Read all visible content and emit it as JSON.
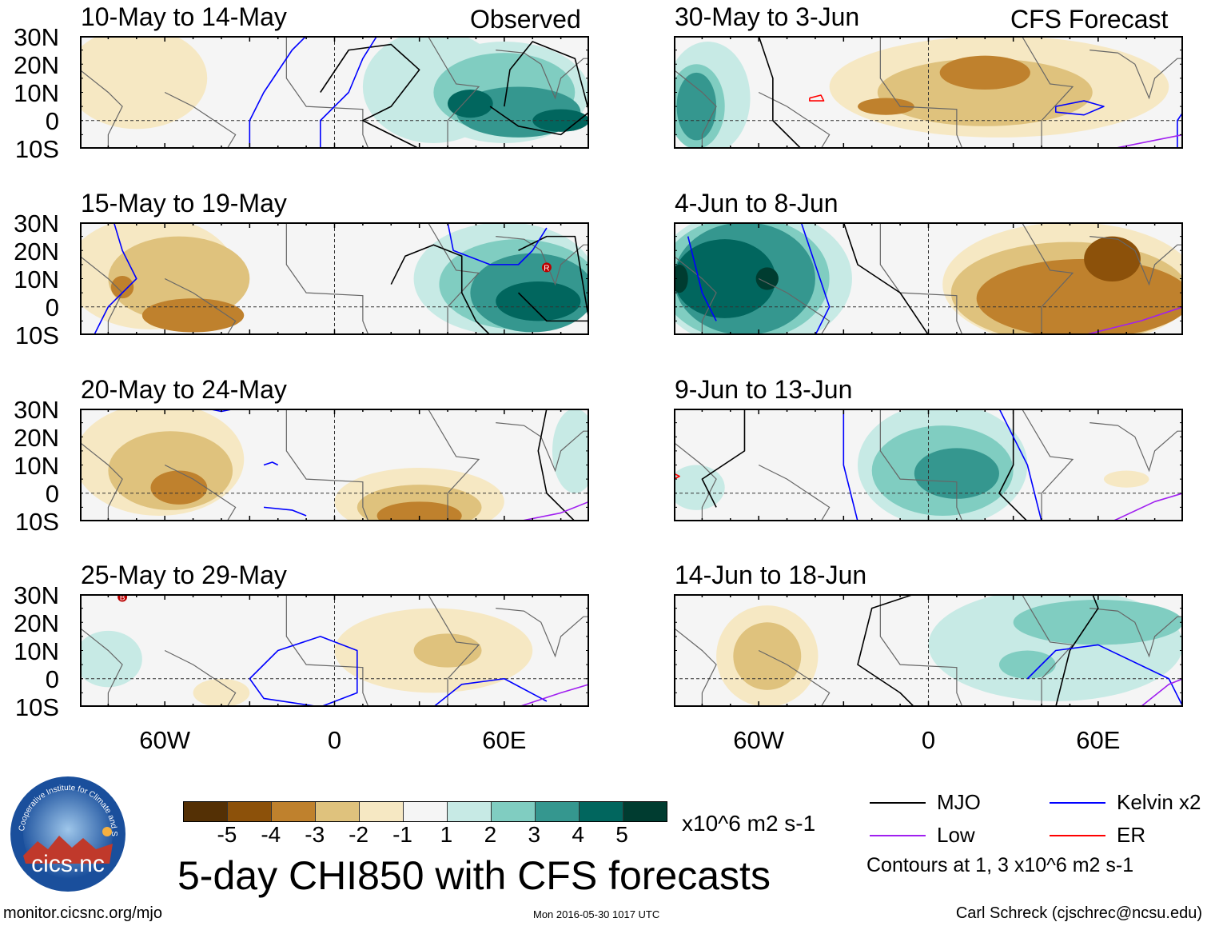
{
  "title": "5-day CHI850 with CFS forecasts",
  "units": "x10^6 m2 s-1",
  "observed_label": "Observed",
  "forecast_label": "CFS Forecast",
  "lat_labels": [
    "30N",
    "20N",
    "10N",
    "0",
    "10S"
  ],
  "lon_labels": [
    {
      "lon": -60,
      "text": "60W"
    },
    {
      "lon": 0,
      "text": "0"
    },
    {
      "lon": 60,
      "text": "60E"
    }
  ],
  "colorbar": {
    "colors": [
      "#543005",
      "#8c510a",
      "#bf812d",
      "#dfc27d",
      "#f6e8c3",
      "#f5f5f5",
      "#c7eae5",
      "#80cdc1",
      "#35978f",
      "#01665e",
      "#003c30"
    ],
    "ticks": [
      "-5",
      "-4",
      "-3",
      "-2",
      "-1",
      "1",
      "2",
      "3",
      "4",
      "5"
    ]
  },
  "legend": {
    "items": [
      {
        "label": "MJO",
        "color": "#000000"
      },
      {
        "label": "Kelvin x2",
        "color": "#0000ff"
      },
      {
        "label": "Low",
        "color": "#a020f0"
      },
      {
        "label": "ER",
        "color": "#ff0000"
      }
    ],
    "contour_note": "Contours at 1, 3 x10^6 m2 s-1"
  },
  "footer": {
    "left": "monitor.cicsnc.org/mjo",
    "center": "Mon 2016-05-30 1017 UTC",
    "right": "Carl Schreck (cjschrec@ncsu.edu)"
  },
  "logo": {
    "text": "cics.nc",
    "arc_text": "Cooperative Institute for Climate and Satellites"
  },
  "panels": [
    {
      "title": "10-May to 14-May",
      "column": "observed",
      "blobs": [
        [
          -70,
          15,
          25,
          18,
          4
        ],
        [
          35,
          12,
          25,
          20,
          6
        ],
        [
          60,
          10,
          30,
          18,
          6
        ],
        [
          60,
          10,
          25,
          14,
          7
        ],
        [
          65,
          3,
          22,
          9,
          8
        ],
        [
          48,
          6,
          8,
          5,
          9
        ],
        [
          80,
          0,
          10,
          4,
          9
        ]
      ],
      "contours": [
        {
          "c": "#000",
          "p": [
            [
              -5,
              10
            ],
            [
              5,
              25
            ],
            [
              20,
              27
            ],
            [
              30,
              18
            ],
            [
              20,
              5
            ],
            [
              10,
              0
            ],
            [
              20,
              -5
            ],
            [
              30,
              -10
            ]
          ]
        },
        {
          "c": "#000",
          "p": [
            [
              60,
              5
            ],
            [
              62,
              18
            ],
            [
              70,
              28
            ],
            [
              85,
              22
            ],
            [
              90,
              3
            ],
            [
              80,
              -5
            ],
            [
              65,
              -2
            ],
            [
              55,
              5
            ]
          ]
        },
        {
          "c": "#00f",
          "p": [
            [
              -30,
              -10
            ],
            [
              -30,
              0
            ],
            [
              -25,
              10
            ],
            [
              -15,
              25
            ],
            [
              -10,
              30
            ]
          ]
        },
        {
          "c": "#00f",
          "p": [
            [
              -5,
              -10
            ],
            [
              -5,
              0
            ],
            [
              5,
              10
            ],
            [
              10,
              22
            ],
            [
              15,
              30
            ]
          ]
        }
      ]
    },
    {
      "title": "15-May to 19-May",
      "column": "observed",
      "blobs": [
        [
          -65,
          12,
          30,
          20,
          4
        ],
        [
          -55,
          10,
          25,
          15,
          3
        ],
        [
          -50,
          -3,
          18,
          6,
          2
        ],
        [
          -75,
          7,
          4,
          4,
          2
        ],
        [
          60,
          10,
          32,
          20,
          6
        ],
        [
          65,
          8,
          28,
          16,
          7
        ],
        [
          70,
          5,
          22,
          14,
          8
        ],
        [
          72,
          2,
          15,
          7,
          9
        ]
      ],
      "contours": [
        {
          "c": "#000",
          "p": [
            [
              20,
              8
            ],
            [
              25,
              18
            ],
            [
              35,
              22
            ],
            [
              45,
              18
            ],
            [
              45,
              5
            ],
            [
              50,
              -5
            ],
            [
              55,
              -10
            ]
          ]
        },
        {
          "c": "#000",
          "p": [
            [
              65,
              20
            ],
            [
              75,
              25
            ],
            [
              85,
              25
            ],
            [
              90,
              -5
            ],
            [
              75,
              -5
            ],
            [
              65,
              5
            ]
          ]
        },
        {
          "c": "#00f",
          "p": [
            [
              -78,
              30
            ],
            [
              -75,
              20
            ],
            [
              -70,
              10
            ],
            [
              -80,
              0
            ],
            [
              -85,
              -10
            ]
          ]
        },
        {
          "c": "#00f",
          "p": [
            [
              40,
              30
            ],
            [
              42,
              20
            ],
            [
              55,
              15
            ],
            [
              65,
              15
            ],
            [
              70,
              20
            ],
            [
              75,
              28
            ]
          ]
        }
      ],
      "marker": {
        "lon": 75,
        "lat": 14,
        "label": "R"
      }
    },
    {
      "title": "20-May to 24-May",
      "column": "observed",
      "blobs": [
        [
          -62,
          12,
          30,
          20,
          4
        ],
        [
          -58,
          8,
          22,
          14,
          3
        ],
        [
          -55,
          2,
          10,
          6,
          2
        ],
        [
          30,
          -3,
          30,
          12,
          4
        ],
        [
          30,
          -5,
          22,
          8,
          3
        ],
        [
          30,
          -8,
          15,
          5,
          2
        ],
        [
          85,
          15,
          8,
          15,
          6
        ]
      ],
      "contours": [
        {
          "c": "#000",
          "p": [
            [
              75,
              30
            ],
            [
              72,
              15
            ],
            [
              75,
              0
            ],
            [
              85,
              -10
            ]
          ]
        },
        {
          "c": "#00f",
          "p": [
            [
              -45,
              30
            ],
            [
              -40,
              29
            ],
            [
              -35,
              30
            ]
          ]
        },
        {
          "c": "#00f",
          "p": [
            [
              -25,
              -5
            ],
            [
              -15,
              -6
            ],
            [
              -10,
              -8
            ]
          ]
        },
        {
          "c": "#00f",
          "p": [
            [
              -25,
              10
            ],
            [
              -22,
              11
            ],
            [
              -20,
              10
            ]
          ]
        },
        {
          "c": "#a020f0",
          "p": [
            [
              65,
              -10
            ],
            [
              80,
              -7
            ],
            [
              90,
              -3
            ]
          ]
        }
      ]
    },
    {
      "title": "25-May to 29-May",
      "column": "observed",
      "blobs": [
        [
          -80,
          7,
          12,
          10,
          6
        ],
        [
          35,
          10,
          35,
          15,
          4
        ],
        [
          40,
          10,
          12,
          6,
          3
        ],
        [
          -40,
          -5,
          10,
          5,
          4
        ]
      ],
      "contours": [
        {
          "c": "#00f",
          "p": [
            [
              -30,
              0
            ],
            [
              -20,
              10
            ],
            [
              -5,
              15
            ],
            [
              8,
              10
            ],
            [
              8,
              -5
            ],
            [
              -5,
              -10
            ],
            [
              -25,
              -7
            ],
            [
              -30,
              0
            ]
          ]
        },
        {
          "c": "#00f",
          "p": [
            [
              35,
              -10
            ],
            [
              45,
              -2
            ],
            [
              60,
              0
            ],
            [
              75,
              -8
            ]
          ]
        },
        {
          "c": "#a020f0",
          "p": [
            [
              65,
              -10
            ],
            [
              80,
              -5
            ],
            [
              90,
              -2
            ]
          ]
        }
      ],
      "marker": {
        "lon": -75,
        "lat": 29,
        "label": "B"
      }
    },
    {
      "title": "30-May to 3-Jun",
      "column": "forecast",
      "blobs": [
        [
          -78,
          8,
          15,
          20,
          6
        ],
        [
          -82,
          5,
          10,
          15,
          7
        ],
        [
          -82,
          5,
          7,
          12,
          8
        ],
        [
          25,
          12,
          60,
          18,
          4
        ],
        [
          20,
          10,
          38,
          12,
          3
        ],
        [
          20,
          17,
          16,
          6,
          2
        ],
        [
          -15,
          5,
          10,
          3,
          2
        ]
      ],
      "contours": [
        {
          "c": "#000",
          "p": [
            [
              -60,
              30
            ],
            [
              -55,
              15
            ],
            [
              -55,
              0
            ],
            [
              -45,
              -10
            ]
          ]
        },
        {
          "c": "#00f",
          "p": [
            [
              45,
              5
            ],
            [
              55,
              7
            ],
            [
              62,
              5
            ],
            [
              55,
              2
            ],
            [
              45,
              3
            ],
            [
              45,
              5
            ]
          ]
        },
        {
          "c": "#00f",
          "p": [
            [
              88,
              -10
            ],
            [
              88,
              0
            ],
            [
              90,
              3
            ]
          ]
        },
        {
          "c": "#f00",
          "p": [
            [
              -42,
              8
            ],
            [
              -38,
              9
            ],
            [
              -37,
              7
            ],
            [
              -42,
              7
            ],
            [
              -42,
              8
            ]
          ]
        },
        {
          "c": "#a020f0",
          "p": [
            [
              65,
              -10
            ],
            [
              80,
              -7
            ],
            [
              90,
              -5
            ]
          ]
        }
      ]
    },
    {
      "title": "4-Jun to 8-Jun",
      "column": "forecast",
      "blobs": [
        [
          -62,
          10,
          35,
          25,
          6
        ],
        [
          -65,
          10,
          30,
          22,
          7
        ],
        [
          -65,
          10,
          25,
          20,
          8
        ],
        [
          -72,
          10,
          18,
          14,
          9
        ],
        [
          -57,
          10,
          4,
          4,
          10
        ],
        [
          -88,
          10,
          3,
          5,
          10
        ],
        [
          50,
          8,
          45,
          22,
          4
        ],
        [
          50,
          5,
          42,
          18,
          3
        ],
        [
          55,
          3,
          38,
          14,
          2
        ],
        [
          65,
          17,
          10,
          8,
          1
        ]
      ],
      "contours": [
        {
          "c": "#000",
          "p": [
            [
              -30,
              30
            ],
            [
              -25,
              15
            ],
            [
              -10,
              5
            ],
            [
              0,
              -10
            ]
          ]
        },
        {
          "c": "#00f",
          "p": [
            [
              -45,
              30
            ],
            [
              -40,
              15
            ],
            [
              -35,
              0
            ],
            [
              -40,
              -10
            ]
          ]
        },
        {
          "c": "#00f",
          "p": [
            [
              -85,
              25
            ],
            [
              -80,
              5
            ],
            [
              -75,
              -5
            ]
          ]
        },
        {
          "c": "#a020f0",
          "p": [
            [
              55,
              -10
            ],
            [
              75,
              -5
            ],
            [
              90,
              0
            ]
          ]
        }
      ]
    },
    {
      "title": "9-Jun to 13-Jun",
      "column": "forecast",
      "blobs": [
        [
          5,
          10,
          30,
          22,
          6
        ],
        [
          5,
          8,
          25,
          16,
          7
        ],
        [
          10,
          7,
          15,
          9,
          8
        ],
        [
          -82,
          2,
          10,
          8,
          6
        ],
        [
          70,
          5,
          8,
          3,
          4
        ]
      ],
      "contours": [
        {
          "c": "#000",
          "p": [
            [
              -65,
              30
            ],
            [
              -65,
              15
            ],
            [
              -80,
              5
            ],
            [
              -75,
              -5
            ]
          ]
        },
        {
          "c": "#000",
          "p": [
            [
              30,
              30
            ],
            [
              30,
              10
            ],
            [
              25,
              0
            ],
            [
              35,
              -10
            ]
          ]
        },
        {
          "c": "#00f",
          "p": [
            [
              -30,
              30
            ],
            [
              -30,
              10
            ],
            [
              -25,
              -10
            ]
          ]
        },
        {
          "c": "#00f",
          "p": [
            [
              25,
              30
            ],
            [
              35,
              10
            ],
            [
              40,
              -10
            ]
          ]
        },
        {
          "c": "#f00",
          "p": [
            [
              -90,
              5
            ],
            [
              -88,
              6
            ],
            [
              -90,
              7
            ]
          ]
        },
        {
          "c": "#a020f0",
          "p": [
            [
              65,
              -10
            ],
            [
              80,
              -3
            ],
            [
              90,
              0
            ]
          ]
        }
      ]
    },
    {
      "title": "14-Jun to 18-Jun",
      "column": "forecast",
      "blobs": [
        [
          -57,
          8,
          18,
          18,
          4
        ],
        [
          -57,
          8,
          12,
          12,
          3
        ],
        [
          45,
          12,
          45,
          20,
          6
        ],
        [
          60,
          20,
          30,
          8,
          7
        ],
        [
          35,
          5,
          10,
          5,
          7
        ]
      ],
      "contours": [
        {
          "c": "#000",
          "p": [
            [
              -5,
              30
            ],
            [
              -20,
              25
            ],
            [
              -25,
              5
            ],
            [
              -10,
              -5
            ],
            [
              -5,
              -10
            ]
          ]
        },
        {
          "c": "#000",
          "p": [
            [
              45,
              -10
            ],
            [
              50,
              10
            ],
            [
              60,
              25
            ],
            [
              58,
              30
            ]
          ]
        },
        {
          "c": "#00f",
          "p": [
            [
              35,
              0
            ],
            [
              45,
              10
            ],
            [
              60,
              12
            ],
            [
              85,
              0
            ],
            [
              90,
              -10
            ]
          ]
        },
        {
          "c": "#a020f0",
          "p": [
            [
              75,
              -10
            ],
            [
              85,
              -2
            ],
            [
              90,
              0
            ]
          ]
        }
      ]
    }
  ]
}
